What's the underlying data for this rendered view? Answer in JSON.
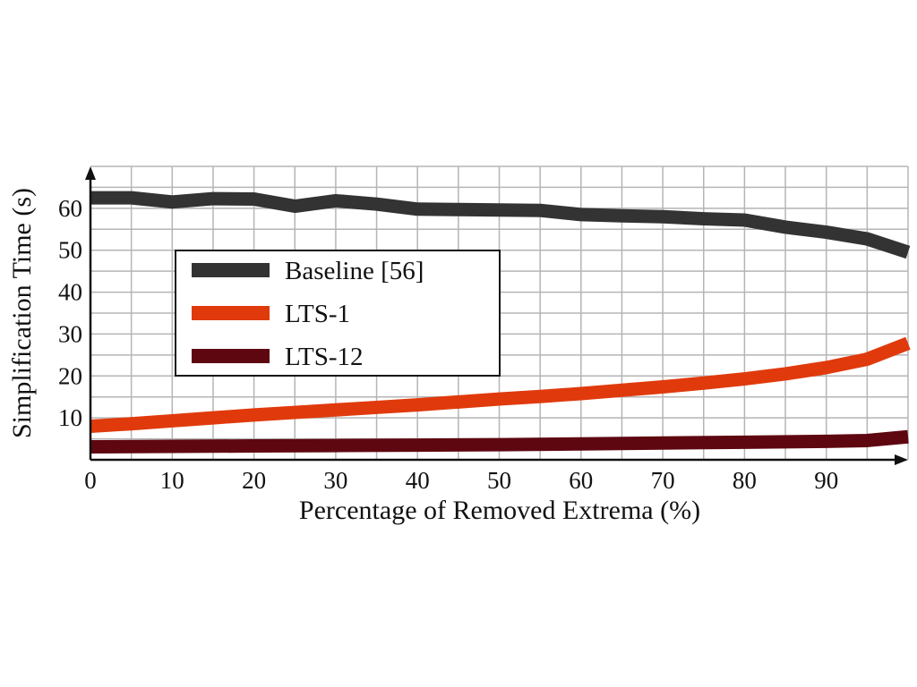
{
  "chart_data": {
    "type": "line",
    "xlabel": "Percentage of Removed Extrema (%)",
    "ylabel": "Simplification Time (s)",
    "xlim": [
      0,
      100
    ],
    "ylim": [
      0,
      70
    ],
    "x_ticks": [
      0,
      10,
      20,
      30,
      40,
      50,
      60,
      70,
      80,
      90
    ],
    "y_ticks": [
      10,
      20,
      30,
      40,
      50,
      60
    ],
    "grid": true,
    "legend_position": "center-left",
    "series": [
      {
        "name": "Baseline [56]",
        "color": "#333333",
        "x": [
          0,
          5,
          10,
          15,
          20,
          25,
          30,
          35,
          40,
          45,
          50,
          55,
          60,
          65,
          70,
          75,
          80,
          85,
          90,
          95,
          100
        ],
        "values": [
          62.5,
          62.5,
          61.5,
          62.3,
          62.2,
          60.5,
          61.8,
          61.0,
          59.8,
          59.7,
          59.6,
          59.5,
          58.5,
          58.2,
          58.0,
          57.5,
          57.2,
          55.5,
          54.3,
          52.7,
          49.5
        ]
      },
      {
        "name": "LTS-1",
        "color": "#e03a0c",
        "x": [
          0,
          5,
          10,
          15,
          20,
          25,
          30,
          35,
          40,
          45,
          50,
          55,
          60,
          65,
          70,
          75,
          80,
          85,
          90,
          95,
          100
        ],
        "values": [
          8.0,
          8.6,
          9.3,
          10.0,
          10.7,
          11.3,
          11.9,
          12.5,
          13.1,
          13.8,
          14.5,
          15.1,
          15.8,
          16.6,
          17.4,
          18.3,
          19.3,
          20.5,
          22.0,
          24.0,
          27.8
        ]
      },
      {
        "name": "LTS-12",
        "color": "#5e0710",
        "x": [
          0,
          10,
          20,
          30,
          40,
          50,
          60,
          70,
          80,
          90,
          95,
          100
        ],
        "values": [
          3.1,
          3.2,
          3.3,
          3.4,
          3.5,
          3.6,
          3.8,
          4.0,
          4.2,
          4.4,
          4.6,
          5.5
        ]
      }
    ]
  }
}
